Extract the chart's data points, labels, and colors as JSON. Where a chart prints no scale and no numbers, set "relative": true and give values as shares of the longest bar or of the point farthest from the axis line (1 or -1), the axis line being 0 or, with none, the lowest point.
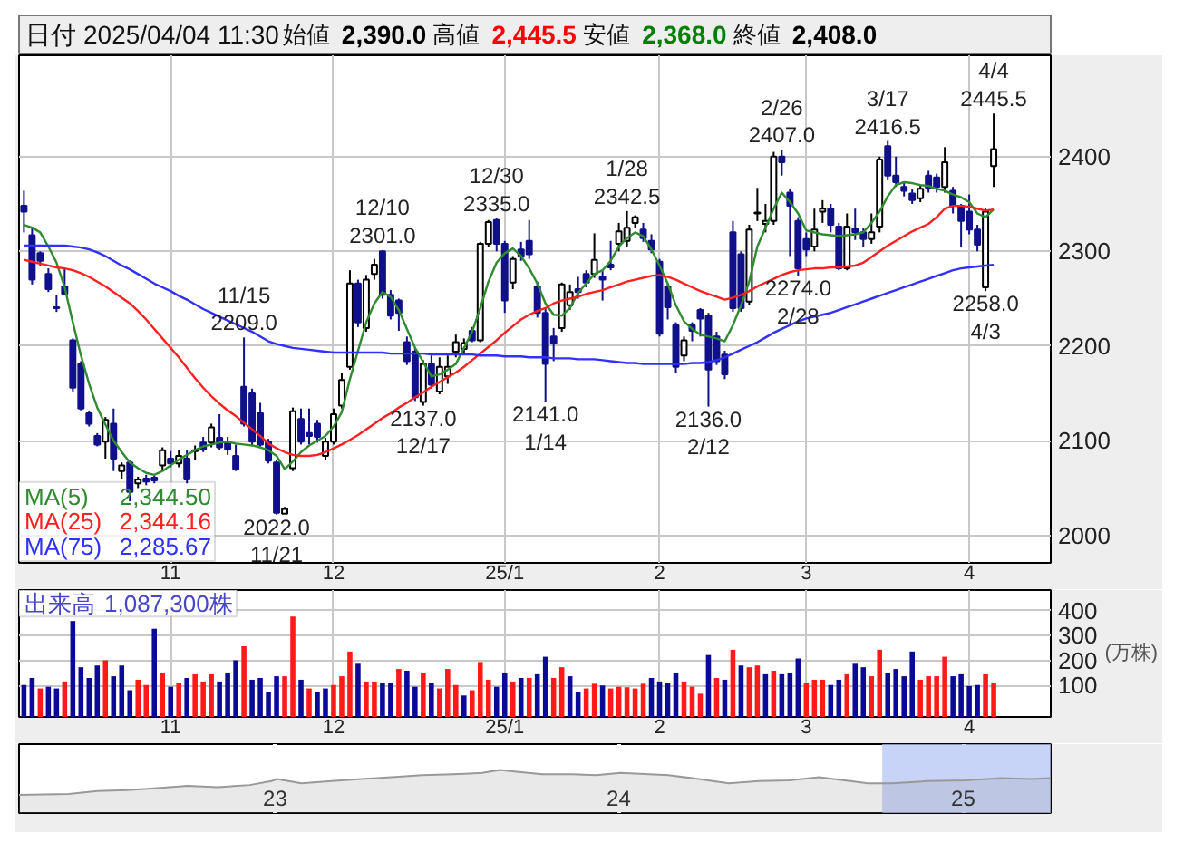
{
  "chart_data": [
    {
      "type": "candlestick",
      "title": "日付 2025/04/04 11:30",
      "annotations": [
        "始値 2,390.0",
        "高値 2,445.5",
        "安値 2,368.0",
        "終値 2,408.0",
        "2,344.50",
        "2,344.16",
        "2,285.67",
        {
          "text": "11/15\n2209.0",
          "y": 2209
        },
        {
          "text": "2022.0\n11/21",
          "y": 2022
        },
        {
          "text": "12/10\n2301.0",
          "y": 2301
        },
        {
          "text": "2137.0\n12/17",
          "y": 2137
        },
        {
          "text": "12/30\n2335.0",
          "y": 2335
        },
        {
          "text": "2141.0\n1/14",
          "y": 2141
        },
        {
          "text": "1/28\n2342.5",
          "y": 2342.5
        },
        {
          "text": "2136.0\n2/12",
          "y": 2136
        },
        {
          "text": "2/26\n2407.0",
          "y": 2407
        },
        {
          "text": "2274.0\n2/28",
          "y": 2274
        },
        {
          "text": "3/17\n2416.5",
          "y": 2416.5
        },
        {
          "text": "2258.0\n4/3",
          "y": 2258
        },
        {
          "text": "4/4\n2445.5",
          "y": 2445.5
        }
      ],
      "categories": [
        null,
        null,
        null,
        null,
        null,
        null,
        null,
        null,
        null,
        null,
        null,
        null,
        null,
        null,
        null,
        null,
        null,
        null,
        "11",
        null,
        null,
        null,
        null,
        null,
        null,
        null,
        null,
        null,
        null,
        null,
        null,
        null,
        null,
        null,
        null,
        null,
        null,
        null,
        "12",
        null,
        null,
        null,
        null,
        null,
        null,
        null,
        null,
        null,
        null,
        null,
        null,
        null,
        null,
        null,
        null,
        null,
        null,
        null,
        null,
        "25/1",
        null,
        null,
        null,
        null,
        null,
        null,
        null,
        null,
        null,
        null,
        null,
        null,
        null,
        null,
        null,
        null,
        null,
        null,
        "2",
        null,
        null,
        null,
        null,
        null,
        null,
        null,
        null,
        null,
        null,
        null,
        null,
        null,
        null,
        null,
        null,
        null,
        "3",
        null,
        null,
        null,
        null,
        null,
        null,
        null,
        null,
        null,
        null,
        null,
        null,
        null,
        null,
        null,
        null,
        null,
        null,
        null,
        "4",
        null,
        null,
        null
      ],
      "ohlc": [
        [
          2348,
          2364,
          2320,
          2342
        ],
        [
          2317,
          2326,
          2265,
          2270
        ],
        [
          2298,
          2300,
          2285,
          2290
        ],
        [
          2276,
          2282,
          2257,
          2260
        ],
        [
          2241,
          2254,
          2236,
          2240
        ],
        [
          2263,
          2282,
          2254,
          2255
        ],
        [
          2206,
          2208,
          2152,
          2156
        ],
        [
          2181,
          2184,
          2132,
          2134
        ],
        [
          2129,
          2131,
          2115,
          2118
        ],
        [
          2105,
          2108,
          2094,
          2096
        ],
        [
          2099,
          2125,
          2081,
          2122
        ],
        [
          2118,
          2134,
          2068,
          2081
        ],
        [
          2068,
          2077,
          2060,
          2074
        ],
        [
          2077,
          2079,
          2036,
          2046
        ],
        [
          2055,
          2062,
          2050,
          2059
        ],
        [
          2060,
          2064,
          2053,
          2057
        ],
        [
          2061,
          2063,
          2055,
          2058
        ],
        [
          2074,
          2093,
          2068,
          2090
        ],
        [
          2081,
          2089,
          2072,
          2076
        ],
        [
          2076,
          2090,
          2072,
          2084
        ],
        [
          2081,
          2090,
          2055,
          2059
        ],
        [
          2089,
          2095,
          2080,
          2090
        ],
        [
          2098,
          2104,
          2088,
          2091
        ],
        [
          2098,
          2118,
          2093,
          2114
        ],
        [
          2103,
          2128,
          2090,
          2093
        ],
        [
          2099,
          2104,
          2085,
          2091
        ],
        [
          2084,
          2096,
          2068,
          2070
        ],
        [
          2157,
          2209,
          2115,
          2118
        ],
        [
          2150,
          2155,
          2095,
          2099
        ],
        [
          2129,
          2140,
          2092,
          2096
        ],
        [
          2099,
          2102,
          2076,
          2079
        ],
        [
          2077,
          2080,
          2022,
          2024
        ],
        [
          2023,
          2030,
          2023,
          2028
        ],
        [
          2071,
          2135,
          2068,
          2131
        ],
        [
          2123,
          2134,
          2096,
          2099
        ],
        [
          2108,
          2134,
          2096,
          2105
        ],
        [
          2118,
          2122,
          2098,
          2104
        ],
        [
          2084,
          2103,
          2080,
          2099
        ],
        [
          2099,
          2134,
          2096,
          2128
        ],
        [
          2137,
          2172,
          2134,
          2164
        ],
        [
          2178,
          2280,
          2175,
          2266
        ],
        [
          2266,
          2270,
          2220,
          2225
        ],
        [
          2219,
          2275,
          2215,
          2270
        ],
        [
          2276,
          2292,
          2270,
          2286
        ],
        [
          2300,
          2301,
          2250,
          2254
        ],
        [
          2254,
          2259,
          2228,
          2232
        ],
        [
          2248,
          2250,
          2216,
          2235
        ],
        [
          2204,
          2210,
          2180,
          2184
        ],
        [
          2194,
          2198,
          2142,
          2146
        ],
        [
          2141,
          2185,
          2137,
          2181
        ],
        [
          2181,
          2190,
          2155,
          2159
        ],
        [
          2152,
          2188,
          2149,
          2178
        ],
        [
          2168,
          2190,
          2160,
          2178
        ],
        [
          2194,
          2212,
          2188,
          2204
        ],
        [
          2197,
          2208,
          2193,
          2203
        ],
        [
          2216,
          2220,
          2204,
          2206
        ],
        [
          2206,
          2310,
          2204,
          2308
        ],
        [
          2308,
          2333,
          2305,
          2331
        ],
        [
          2333,
          2335,
          2300,
          2308
        ],
        [
          2308,
          2311,
          2235,
          2248
        ],
        [
          2267,
          2295,
          2260,
          2292
        ],
        [
          2302,
          2310,
          2290,
          2295
        ],
        [
          2311,
          2333,
          2292,
          2297
        ],
        [
          2263,
          2268,
          2230,
          2235
        ],
        [
          2235,
          2240,
          2141,
          2181
        ],
        [
          2210,
          2219,
          2184,
          2203
        ],
        [
          2219,
          2267,
          2215,
          2265
        ],
        [
          2243,
          2265,
          2238,
          2257
        ],
        [
          2260,
          2273,
          2250,
          2257
        ],
        [
          2276,
          2280,
          2262,
          2267
        ],
        [
          2276,
          2319,
          2272,
          2291
        ],
        [
          2273,
          2279,
          2248,
          2270
        ],
        [
          2286,
          2311,
          2280,
          2283
        ],
        [
          2308,
          2330,
          2300,
          2321
        ],
        [
          2311,
          2342.5,
          2305,
          2325
        ],
        [
          2330,
          2338,
          2325,
          2336
        ],
        [
          2323,
          2330,
          2310,
          2314
        ],
        [
          2311,
          2318,
          2298,
          2302
        ],
        [
          2289,
          2292,
          2210,
          2213
        ],
        [
          2263,
          2266,
          2228,
          2241
        ],
        [
          2222,
          2225,
          2172,
          2178
        ],
        [
          2190,
          2210,
          2184,
          2206
        ],
        [
          2222,
          2225,
          2205,
          2216
        ],
        [
          2238,
          2240,
          2210,
          2229
        ],
        [
          2232,
          2235,
          2136,
          2175
        ],
        [
          2210,
          2215,
          2180,
          2184
        ],
        [
          2191,
          2195,
          2165,
          2170
        ],
        [
          2320,
          2332,
          2236,
          2240
        ],
        [
          2297,
          2300,
          2236,
          2240
        ],
        [
          2247,
          2328,
          2243,
          2323
        ],
        [
          2340,
          2367,
          2332,
          2341
        ],
        [
          2329,
          2350,
          2320,
          2332
        ],
        [
          2332,
          2405,
          2328,
          2400
        ],
        [
          2400,
          2407,
          2380,
          2394
        ],
        [
          2362,
          2366,
          2295,
          2348
        ],
        [
          2332,
          2336,
          2274,
          2282
        ],
        [
          2313,
          2320,
          2295,
          2302
        ],
        [
          2305,
          2345,
          2300,
          2323
        ],
        [
          2342,
          2354,
          2330,
          2345
        ],
        [
          2345,
          2350,
          2320,
          2328
        ],
        [
          2326,
          2330,
          2280,
          2282
        ],
        [
          2282,
          2340,
          2280,
          2326
        ],
        [
          2324,
          2345,
          2312,
          2320
        ],
        [
          2320,
          2325,
          2305,
          2313
        ],
        [
          2313,
          2340,
          2308,
          2320
        ],
        [
          2326,
          2400,
          2320,
          2397
        ],
        [
          2411,
          2416.5,
          2375,
          2380
        ],
        [
          2380,
          2400,
          2368,
          2373
        ],
        [
          2368,
          2372,
          2358,
          2364
        ],
        [
          2361,
          2366,
          2350,
          2354
        ],
        [
          2356,
          2370,
          2352,
          2366
        ],
        [
          2380,
          2385,
          2362,
          2367
        ],
        [
          2378,
          2382,
          2362,
          2368
        ],
        [
          2368,
          2410,
          2362,
          2394
        ],
        [
          2364,
          2368,
          2340,
          2348
        ],
        [
          2348,
          2350,
          2304,
          2332
        ],
        [
          2342,
          2360,
          2318,
          2323
        ],
        [
          2323,
          2328,
          2300,
          2307
        ],
        [
          2262,
          2345,
          2258,
          2342
        ],
        [
          2390,
          2445.5,
          2368,
          2408
        ]
      ],
      "series": [
        {
          "name": "MA(5)",
          "type": "line",
          "color": "#2e8b2e",
          "values": [
            2328,
            2325,
            2320,
            2305,
            2288,
            2262,
            2225,
            2190,
            2160,
            2135,
            2117,
            2100,
            2088,
            2077,
            2071,
            2066,
            2064,
            2068,
            2074,
            2080,
            2085,
            2090,
            2094,
            2096,
            2098,
            2099,
            2097,
            2096,
            2095,
            2093,
            2090,
            2084,
            2070,
            2078,
            2088,
            2095,
            2100,
            2105,
            2115,
            2130,
            2165,
            2195,
            2225,
            2245,
            2257,
            2252,
            2238,
            2218,
            2198,
            2183,
            2168,
            2170,
            2175,
            2181,
            2198,
            2215,
            2240,
            2268,
            2288,
            2298,
            2303,
            2295,
            2282,
            2266,
            2245,
            2233,
            2232,
            2240,
            2256,
            2266,
            2276,
            2280,
            2290,
            2305,
            2314,
            2320,
            2316,
            2302,
            2285,
            2266,
            2243,
            2226,
            2218,
            2212,
            2210,
            2208,
            2205,
            2222,
            2243,
            2268,
            2305,
            2325,
            2345,
            2362,
            2352,
            2340,
            2322,
            2320,
            2318,
            2317,
            2316,
            2317,
            2318,
            2320,
            2330,
            2342,
            2358,
            2370,
            2373,
            2372,
            2370,
            2369,
            2366,
            2364,
            2360,
            2357,
            2352,
            2340,
            2336,
            2344.5
          ]
        },
        {
          "name": "MA(25)",
          "type": "line",
          "color": "#ff2020",
          "values": [
            2291,
            2289,
            2287,
            2285,
            2283,
            2282,
            2280,
            2277,
            2273,
            2268,
            2263,
            2257,
            2251,
            2245,
            2237,
            2228,
            2218,
            2208,
            2198,
            2188,
            2177,
            2166,
            2156,
            2147,
            2139,
            2132,
            2126,
            2119,
            2112,
            2105,
            2097,
            2092,
            2088,
            2085,
            2084,
            2084,
            2085,
            2088,
            2092,
            2096,
            2101,
            2106,
            2112,
            2118,
            2124,
            2129,
            2135,
            2140,
            2146,
            2151,
            2157,
            2162,
            2167,
            2172,
            2178,
            2185,
            2192,
            2199,
            2206,
            2214,
            2221,
            2228,
            2233,
            2237,
            2240,
            2245,
            2248,
            2250,
            2252,
            2255,
            2257,
            2259,
            2262,
            2265,
            2268,
            2270,
            2272,
            2274,
            2275,
            2273,
            2270,
            2266,
            2262,
            2258,
            2255,
            2252,
            2249,
            2251,
            2254,
            2258,
            2263,
            2267,
            2271,
            2275,
            2278,
            2280,
            2281,
            2282,
            2282,
            2283,
            2283,
            2284,
            2285,
            2288,
            2294,
            2300,
            2306,
            2311,
            2316,
            2321,
            2325,
            2329,
            2336,
            2345,
            2348,
            2348,
            2347,
            2345,
            2343,
            2344.16
          ]
        },
        {
          "name": "MA(75)",
          "type": "line",
          "color": "#3030ff",
          "values": [
            2306,
            2306,
            2306,
            2306,
            2306,
            2306,
            2305,
            2304,
            2302,
            2299,
            2295,
            2290,
            2285,
            2281,
            2276,
            2271,
            2266,
            2262,
            2258,
            2253,
            2249,
            2244,
            2239,
            2235,
            2231,
            2227,
            2223,
            2219,
            2215,
            2210,
            2205,
            2202,
            2200,
            2198,
            2197,
            2196,
            2195,
            2194,
            2193,
            2193,
            2193,
            2193,
            2193,
            2193,
            2193,
            2192,
            2192,
            2192,
            2192,
            2192,
            2191,
            2191,
            2191,
            2191,
            2191,
            2191,
            2190,
            2190,
            2190,
            2189,
            2189,
            2189,
            2188,
            2188,
            2188,
            2187,
            2187,
            2187,
            2186,
            2186,
            2186,
            2185,
            2184,
            2183,
            2182,
            2182,
            2181,
            2181,
            2181,
            2181,
            2181,
            2181,
            2182,
            2182,
            2183,
            2185,
            2188,
            2192,
            2196,
            2200,
            2204,
            2209,
            2214,
            2218,
            2222,
            2226,
            2229,
            2231,
            2233,
            2235,
            2238,
            2241,
            2244,
            2247,
            2250,
            2253,
            2256,
            2259,
            2262,
            2265,
            2268,
            2271,
            2274,
            2277,
            2280,
            2282,
            2283,
            2284,
            2285,
            2285.67
          ]
        }
      ],
      "ylim": [
        1971,
        2507
      ],
      "yticks": [
        2000,
        2100,
        2200,
        2300,
        2400
      ],
      "grid": true,
      "legend": "bottom left"
    },
    {
      "type": "bar",
      "ylabel": "(万株)",
      "annotations": [
        "1,087,300株"
      ],
      "categories": [
        null,
        null,
        null,
        null,
        null,
        null,
        null,
        null,
        null,
        null,
        null,
        null,
        null,
        null,
        null,
        null,
        null,
        null,
        "11",
        null,
        null,
        null,
        null,
        null,
        null,
        null,
        null,
        null,
        null,
        null,
        null,
        null,
        null,
        null,
        null,
        null,
        null,
        null,
        "12",
        null,
        null,
        null,
        null,
        null,
        null,
        null,
        null,
        null,
        null,
        null,
        null,
        null,
        null,
        null,
        null,
        null,
        null,
        null,
        null,
        "25/1",
        null,
        null,
        null,
        null,
        null,
        null,
        null,
        null,
        null,
        null,
        null,
        null,
        null,
        null,
        null,
        null,
        null,
        null,
        "2",
        null,
        null,
        null,
        null,
        null,
        null,
        null,
        null,
        null,
        null,
        null,
        null,
        null,
        null,
        null,
        null,
        null,
        "3",
        null,
        null,
        null,
        null,
        null,
        null,
        null,
        null,
        null,
        null,
        null,
        null,
        null,
        null,
        null,
        null,
        null,
        null,
        null,
        "4",
        null,
        null,
        null
      ],
      "series": [
        {
          "name": "出来高",
          "values": [
            102,
            130,
            88,
            95,
            88,
            116,
            358,
            173,
            130,
            180,
            201,
            137,
            180,
            81,
            123,
            102,
            327,
            152,
            95,
            109,
            130,
            145,
            116,
            145,
            116,
            152,
            201,
            257,
            123,
            130,
            74,
            137,
            137,
            376,
            123,
            88,
            74,
            88,
            102,
            137,
            236,
            187,
            116,
            116,
            109,
            109,
            166,
            159,
            95,
            152,
            109,
            88,
            166,
            102,
            60,
            81,
            194,
            123,
            95,
            152,
            116,
            130,
            130,
            145,
            215,
            130,
            173,
            137,
            74,
            88,
            107,
            100,
            88,
            95,
            93,
            88,
            107,
            130,
            116,
            109,
            152,
            116,
            95,
            67,
            222,
            130,
            123,
            243,
            180,
            173,
            180,
            145,
            159,
            145,
            152,
            208,
            109,
            123,
            123,
            102,
            123,
            145,
            187,
            173,
            137,
            243,
            152,
            166,
            137,
            236,
            123,
            137,
            137,
            215,
            137,
            145,
            98,
            102,
            145,
            109
          ],
          "colors": [
            "#0a0a96",
            "#0a0a96",
            "#ff1a1a",
            "#0a0a96",
            "#0a0a96",
            "#ff1a1a",
            "#0a0a96",
            "#0a0a96",
            "#0a0a96",
            "#0a0a96",
            "#ff1a1a",
            "#0a0a96",
            "#0a0a96",
            "#0a0a96",
            "#ff1a1a",
            "#ff1a1a",
            "#0a0a96",
            "#ff1a1a",
            "#0a0a96",
            "#ff1a1a",
            "#0a0a96",
            "#ff1a1a",
            "#ff1a1a",
            "#ff1a1a",
            "#0a0a96",
            "#0a0a96",
            "#0a0a96",
            "#ff1a1a",
            "#0a0a96",
            "#0a0a96",
            "#0a0a96",
            "#0a0a96",
            "#ff1a1a",
            "#ff1a1a",
            "#0a0a96",
            "#ff1a1a",
            "#0a0a96",
            "#0a0a96",
            "#ff1a1a",
            "#ff1a1a",
            "#ff1a1a",
            "#0a0a96",
            "#ff1a1a",
            "#ff1a1a",
            "#0a0a96",
            "#0a0a96",
            "#ff1a1a",
            "#0a0a96",
            "#0a0a96",
            "#ff1a1a",
            "#0a0a96",
            "#ff1a1a",
            "#ff1a1a",
            "#ff1a1a",
            "#0a0a96",
            "#ff1a1a",
            "#ff1a1a",
            "#ff1a1a",
            "#0a0a96",
            "#0a0a96",
            "#ff1a1a",
            "#0a0a96",
            "#ff1a1a",
            "#0a0a96",
            "#0a0a96",
            "#ff1a1a",
            "#ff1a1a",
            "#0a0a96",
            "#0a0a96",
            "#ff1a1a",
            "#ff1a1a",
            "#0a0a96",
            "#ff1a1a",
            "#ff1a1a",
            "#ff1a1a",
            "#ff1a1a",
            "#ff1a1a",
            "#0a0a96",
            "#0a0a96",
            "#0a0a96",
            "#0a0a96",
            "#ff1a1a",
            "#ff1a1a",
            "#ff1a1a",
            "#0a0a96",
            "#ff1a1a",
            "#0a0a96",
            "#ff1a1a",
            "#0a0a96",
            "#ff1a1a",
            "#ff1a1a",
            "#0a0a96",
            "#ff1a1a",
            "#0a0a96",
            "#0a0a96",
            "#0a0a96",
            "#ff1a1a",
            "#ff1a1a",
            "#ff1a1a",
            "#0a0a96",
            "#0a0a96",
            "#ff1a1a",
            "#0a0a96",
            "#0a0a96",
            "#ff1a1a",
            "#ff1a1a",
            "#0a0a96",
            "#0a0a96",
            "#0a0a96",
            "#0a0a96",
            "#ff1a1a",
            "#ff1a1a",
            "#ff1a1a",
            "#ff1a1a",
            "#0a0a96",
            "#0a0a96",
            "#0a0a96",
            "#0a0a96",
            "#ff1a1a",
            "#ff1a1a"
          ]
        }
      ],
      "ylim": [
        -26,
        482
      ],
      "yticks": [
        100,
        200,
        300,
        400
      ],
      "grid": true,
      "legend": "top left"
    },
    {
      "type": "area",
      "relative": true,
      "x": [
        "2022-04-04",
        "2022-05-27",
        "2022-06-26",
        "2022-07-28",
        "2022-08-29",
        "2022-09-30",
        "2022-11-01",
        "2022-12-05",
        "2022-12-28",
        "2023-01-03",
        "2023-01-29",
        "2023-03-02",
        "2023-04-03",
        "2023-05-05",
        "2023-06-06",
        "2023-07-09",
        "2023-08-09",
        "2023-08-28",
        "2023-09-10",
        "2023-10-12",
        "2023-11-13",
        "2023-12-08",
        "2024-01-03",
        "2024-02-23",
        "2024-03-26",
        "2024-04-27",
        "2024-05-29",
        "2024-06-30",
        "2024-08-01",
        "2024-09-03",
        "2024-09-22",
        "2024-10-17",
        "2024-11-24",
        "2025-01-03",
        "2025-02-11",
        "2025-03-14",
        "2025-04-04"
      ],
      "series": [
        {
          "color": "#999999",
          "values": [
            0.42,
            0.44,
            0.51,
            0.53,
            0.58,
            0.63,
            0.6,
            0.65,
            0.74,
            0.79,
            0.69,
            0.74,
            0.79,
            0.83,
            0.88,
            0.9,
            0.93,
            1.0,
            0.97,
            0.9,
            0.9,
            0.88,
            0.93,
            0.88,
            0.79,
            0.69,
            0.74,
            0.76,
            0.83,
            0.74,
            0.69,
            0.69,
            0.74,
            0.76,
            0.81,
            0.79,
            0.81
          ]
        }
      ],
      "xlim": [
        "2022-04-04",
        "2025-04-04"
      ],
      "xticks": [
        {
          "value": "2023-01-01",
          "label": "23"
        },
        {
          "value": "2024-01-01",
          "label": "24"
        },
        {
          "value": "2025-01-01",
          "label": "25"
        }
      ],
      "grid": "x",
      "bands": [
        {
          "axis": "x",
          "from": "2024-10-07",
          "to": "2025-04-04",
          "color": "#b4c4f4"
        }
      ]
    }
  ]
}
